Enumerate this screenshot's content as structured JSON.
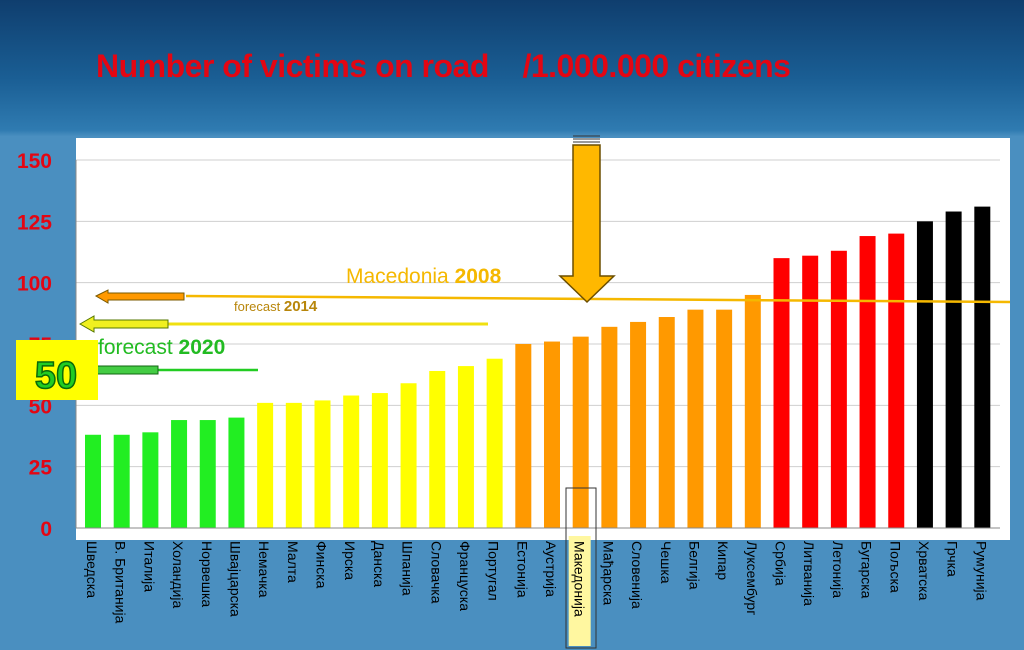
{
  "slide": {
    "title": "Number of victims on road    /1.000.000 citizens"
  },
  "chart_data": {
    "type": "bar",
    "title": "Number of victims on road    /1.000.000 citizens",
    "xlabel": "",
    "ylabel": "",
    "ylim": [
      0,
      150
    ],
    "yticks": [
      0,
      25,
      50,
      75,
      100,
      125,
      150
    ],
    "grid": true,
    "categories": [
      "Шведска",
      "В. Британија",
      "Италија",
      "Холандија",
      "Норвешка",
      "Швајцарска",
      "Немачка",
      "Малта",
      "Финска",
      "Ирска",
      "Данска",
      "Шпанија",
      "Словачка",
      "Француска",
      "Португал",
      "Естонија",
      "Аустрија",
      "Македонија",
      "Мађарска",
      "Словенија",
      "Чешка",
      "Белгија",
      "Кипар",
      "Луксембург",
      "Србија",
      "Литванија",
      "Летонија",
      "Бугарска",
      "Пољска",
      "Хрватска",
      "Грчка",
      "Румунија"
    ],
    "values": [
      38,
      38,
      39,
      44,
      44,
      45,
      51,
      51,
      52,
      54,
      55,
      59,
      64,
      66,
      69,
      75,
      76,
      78,
      82,
      84,
      86,
      89,
      89,
      95,
      110,
      111,
      113,
      119,
      120,
      125,
      129,
      131
    ],
    "bar_colors": [
      "#22ee22",
      "#22ee22",
      "#22ee22",
      "#22ee22",
      "#22ee22",
      "#22ee22",
      "#ffff00",
      "#ffff00",
      "#ffff00",
      "#ffff00",
      "#ffff00",
      "#ffff00",
      "#ffff00",
      "#ffff00",
      "#ffff00",
      "#ff9900",
      "#ff9900",
      "#ff9900",
      "#ff9900",
      "#ff9900",
      "#ff9900",
      "#ff9900",
      "#ff9900",
      "#ff9900",
      "#ff0000",
      "#ff0000",
      "#ff0000",
      "#ff0000",
      "#ff0000",
      "#000000",
      "#000000",
      "#000000"
    ],
    "highlight_category": "Македонија",
    "annotations": [
      {
        "text_a": "Macedonia ",
        "text_b": "2008",
        "value": 93,
        "color": "#f5b800"
      },
      {
        "text_a": "forecast ",
        "text_b": "2014",
        "value": 83,
        "color": "#f0e010"
      },
      {
        "text_a": "forecast ",
        "text_b": "2020",
        "value": 64,
        "color": "#22aa22"
      },
      {
        "text_a": "50",
        "text_b": "",
        "value": 50,
        "color": "#ffff00"
      }
    ]
  }
}
